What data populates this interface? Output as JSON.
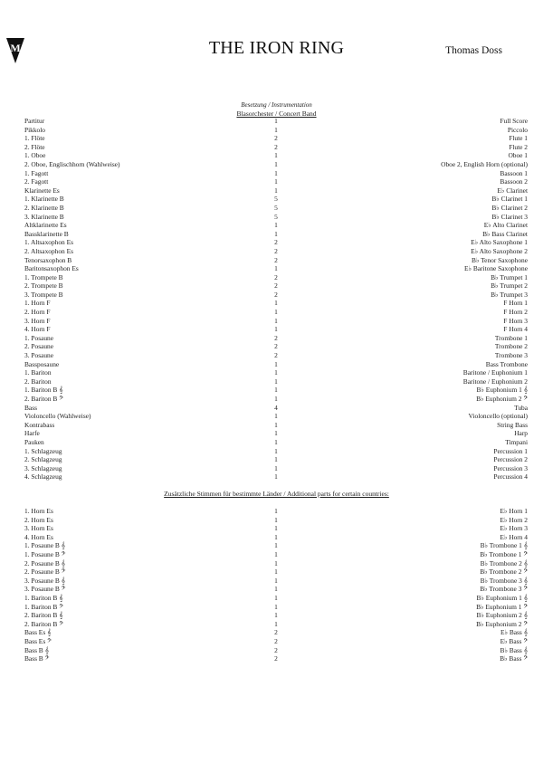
{
  "header": {
    "title": "THE IRON RING",
    "composer": "Thomas Doss",
    "logo_text": "M"
  },
  "section1": {
    "heading": "Besetzung / Instrumentation",
    "subheading": "Blasorchester / Concert Band",
    "rows": [
      [
        "Partitur",
        "1",
        "Full Score"
      ],
      [
        "Pikkolo",
        "1",
        "Piccolo"
      ],
      [
        "1. Flöte",
        "2",
        "Flute 1"
      ],
      [
        "2. Flöte",
        "2",
        "Flute 2"
      ],
      [
        "1. Oboe",
        "1",
        "Oboe 1"
      ],
      [
        "2. Oboe, Englischhorn (Wahlweise)",
        "1",
        "Oboe 2, English Horn (optional)"
      ],
      [
        "1. Fagott",
        "1",
        "Bassoon 1"
      ],
      [
        "2. Fagott",
        "1",
        "Bassoon 2"
      ],
      [
        "Klarinette Es",
        "1",
        "E♭ Clarinet"
      ],
      [
        "1. Klarinette B",
        "5",
        "B♭ Clarinet 1"
      ],
      [
        "2. Klarinette B",
        "5",
        "B♭ Clarinet 2"
      ],
      [
        "3. Klarinette B",
        "5",
        "B♭ Clarinet 3"
      ],
      [
        "Altklarinette Es",
        "1",
        "E♭ Alto Clarinet"
      ],
      [
        "Bassklarinette B",
        "1",
        "B♭ Bass Clarinet"
      ],
      [
        "1. Altsaxophon Es",
        "2",
        "E♭ Alto Saxophone 1"
      ],
      [
        "2. Altsaxophon Es",
        "2",
        "E♭ Alto Saxophone 2"
      ],
      [
        "Tenorsaxophon B",
        "2",
        "B♭ Tenor Saxophone"
      ],
      [
        "Baritonsaxophon Es",
        "1",
        "E♭ Baritone Saxophone"
      ],
      [
        "1. Trompete B",
        "2",
        "B♭ Trumpet 1"
      ],
      [
        "2. Trompete B",
        "2",
        "B♭ Trumpet 2"
      ],
      [
        "3. Trompete B",
        "2",
        "B♭ Trumpet 3"
      ],
      [
        "1. Horn F",
        "1",
        "F Horn 1"
      ],
      [
        "2. Horn F",
        "1",
        "F Horn 2"
      ],
      [
        "3. Horn F",
        "1",
        "F Horn 3"
      ],
      [
        "4. Horn F",
        "1",
        "F Horn 4"
      ],
      [
        "1. Posaune",
        "2",
        "Trombone 1"
      ],
      [
        "2. Posaune",
        "2",
        "Trombone 2"
      ],
      [
        "3. Posaune",
        "2",
        "Trombone 3"
      ],
      [
        "Bassposaune",
        "1",
        "Bass Trombone"
      ],
      [
        "1. Bariton",
        "1",
        "Baritone / Euphonium 1"
      ],
      [
        "2. Bariton",
        "1",
        "Baritone / Euphonium 2"
      ],
      [
        "1. Bariton B 𝄞",
        "1",
        "B♭ Euphonium 1 𝄞"
      ],
      [
        "2. Bariton B 𝄢",
        "1",
        "B♭ Euphonium 2 𝄢"
      ],
      [
        "Bass",
        "4",
        "Tuba"
      ],
      [
        "Violoncello (Wahlweise)",
        "1",
        "Violoncello (optional)"
      ],
      [
        "Kontrabass",
        "1",
        "String Bass"
      ],
      [
        "Harfe",
        "1",
        "Harp"
      ],
      [
        "Pauken",
        "1",
        "Timpani"
      ],
      [
        "1. Schlagzeug",
        "1",
        "Percussion 1"
      ],
      [
        "2. Schlagzeug",
        "1",
        "Percussion 2"
      ],
      [
        "3. Schlagzeug",
        "1",
        "Percussion 3"
      ],
      [
        "4. Schlagzeug",
        "1",
        "Percussion 4"
      ]
    ]
  },
  "section2": {
    "heading": "Zusätzliche Stimmen für bestimmte Länder / Additional parts for certain countries:",
    "rows": [
      [
        "1. Horn Es",
        "1",
        "E♭ Horn 1"
      ],
      [
        "2. Horn Es",
        "1",
        "E♭ Horn 2"
      ],
      [
        "3. Horn Es",
        "1",
        "E♭ Horn 3"
      ],
      [
        "4. Horn Es",
        "1",
        "E♭ Horn 4"
      ],
      [
        "1. Posaune B 𝄞",
        "1",
        "B♭ Trombone 1 𝄞"
      ],
      [
        "1. Posaune B 𝄢",
        "1",
        "B♭ Trombone 1 𝄢"
      ],
      [
        "2. Posaune B 𝄞",
        "1",
        "B♭ Trombone 2 𝄞"
      ],
      [
        "2. Posaune B 𝄢",
        "1",
        "B♭ Trombone 2 𝄢"
      ],
      [
        "3. Posaune B 𝄞",
        "1",
        "B♭ Trombone 3 𝄞"
      ],
      [
        "3. Posaune B 𝄢",
        "1",
        "B♭ Trombone 3 𝄢"
      ],
      [
        "1. Bariton B 𝄞",
        "1",
        "B♭ Euphonium 1 𝄞"
      ],
      [
        "1. Bariton B 𝄢",
        "1",
        "B♭ Euphonium 1 𝄢"
      ],
      [
        "2. Bariton B 𝄞",
        "1",
        "B♭ Euphonium 2 𝄞"
      ],
      [
        "2. Bariton B 𝄢",
        "1",
        "B♭ Euphonium 2 𝄢"
      ],
      [
        "Bass Es 𝄞",
        "2",
        "E♭ Bass 𝄞"
      ],
      [
        "Bass Es 𝄢",
        "2",
        "E♭ Bass 𝄢"
      ],
      [
        "Bass B 𝄞",
        "2",
        "B♭ Bass 𝄞"
      ],
      [
        "Bass B 𝄢",
        "2",
        "B♭ Bass 𝄢"
      ]
    ]
  }
}
